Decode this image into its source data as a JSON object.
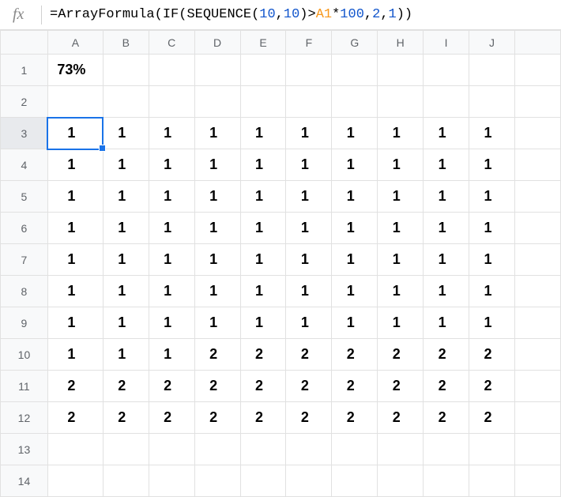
{
  "formula": {
    "parts": [
      {
        "t": "=",
        "c": "f-eq"
      },
      {
        "t": "ArrayFormula",
        "c": "f-func"
      },
      {
        "t": "(",
        "c": "f-paren"
      },
      {
        "t": "IF",
        "c": "f-func"
      },
      {
        "t": "(",
        "c": "f-paren"
      },
      {
        "t": "SEQUENCE",
        "c": "f-func"
      },
      {
        "t": "(",
        "c": "f-paren"
      },
      {
        "t": "10",
        "c": "f-num"
      },
      {
        "t": ",",
        "c": "f-comma"
      },
      {
        "t": "10",
        "c": "f-num"
      },
      {
        "t": ")",
        "c": "f-paren"
      },
      {
        "t": ">",
        "c": "f-op"
      },
      {
        "t": "A1",
        "c": "f-ref"
      },
      {
        "t": "*",
        "c": "f-op"
      },
      {
        "t": "100",
        "c": "f-num"
      },
      {
        "t": ",",
        "c": "f-comma"
      },
      {
        "t": "2",
        "c": "f-num"
      },
      {
        "t": ",",
        "c": "f-comma"
      },
      {
        "t": "1",
        "c": "f-num"
      },
      {
        "t": ")",
        "c": "f-paren"
      },
      {
        "t": ")",
        "c": "f-paren"
      }
    ]
  },
  "fx_label": "fx",
  "columns": [
    "A",
    "B",
    "C",
    "D",
    "E",
    "F",
    "G",
    "H",
    "I",
    "J",
    ""
  ],
  "row_count": 14,
  "active_cell": {
    "row": 3,
    "col": 0
  },
  "data": {
    "r1": {
      "c0": "73%"
    },
    "r3": {
      "c0": "1",
      "c1": "1",
      "c2": "1",
      "c3": "1",
      "c4": "1",
      "c5": "1",
      "c6": "1",
      "c7": "1",
      "c8": "1",
      "c9": "1"
    },
    "r4": {
      "c0": "1",
      "c1": "1",
      "c2": "1",
      "c3": "1",
      "c4": "1",
      "c5": "1",
      "c6": "1",
      "c7": "1",
      "c8": "1",
      "c9": "1"
    },
    "r5": {
      "c0": "1",
      "c1": "1",
      "c2": "1",
      "c3": "1",
      "c4": "1",
      "c5": "1",
      "c6": "1",
      "c7": "1",
      "c8": "1",
      "c9": "1"
    },
    "r6": {
      "c0": "1",
      "c1": "1",
      "c2": "1",
      "c3": "1",
      "c4": "1",
      "c5": "1",
      "c6": "1",
      "c7": "1",
      "c8": "1",
      "c9": "1"
    },
    "r7": {
      "c0": "1",
      "c1": "1",
      "c2": "1",
      "c3": "1",
      "c4": "1",
      "c5": "1",
      "c6": "1",
      "c7": "1",
      "c8": "1",
      "c9": "1"
    },
    "r8": {
      "c0": "1",
      "c1": "1",
      "c2": "1",
      "c3": "1",
      "c4": "1",
      "c5": "1",
      "c6": "1",
      "c7": "1",
      "c8": "1",
      "c9": "1"
    },
    "r9": {
      "c0": "1",
      "c1": "1",
      "c2": "1",
      "c3": "1",
      "c4": "1",
      "c5": "1",
      "c6": "1",
      "c7": "1",
      "c8": "1",
      "c9": "1"
    },
    "r10": {
      "c0": "1",
      "c1": "1",
      "c2": "1",
      "c3": "2",
      "c4": "2",
      "c5": "2",
      "c6": "2",
      "c7": "2",
      "c8": "2",
      "c9": "2"
    },
    "r11": {
      "c0": "2",
      "c1": "2",
      "c2": "2",
      "c3": "2",
      "c4": "2",
      "c5": "2",
      "c6": "2",
      "c7": "2",
      "c8": "2",
      "c9": "2"
    },
    "r12": {
      "c0": "2",
      "c1": "2",
      "c2": "2",
      "c3": "2",
      "c4": "2",
      "c5": "2",
      "c6": "2",
      "c7": "2",
      "c8": "2",
      "c9": "2"
    }
  },
  "bold_rows": [
    1,
    3,
    4,
    5,
    6,
    7,
    8,
    9,
    10,
    11,
    12
  ]
}
